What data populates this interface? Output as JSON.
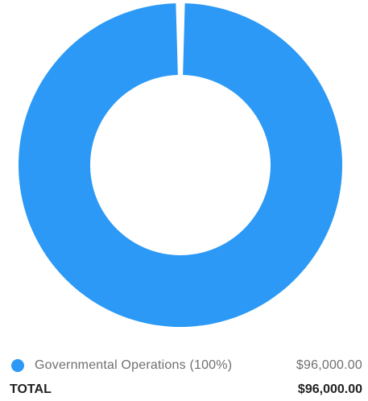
{
  "chart_data": {
    "type": "pie",
    "style": "donut",
    "categories": [
      "Governmental Operations"
    ],
    "values": [
      96000
    ],
    "colors": [
      "#2b99f5"
    ],
    "legend": [
      {
        "label": "Governmental Operations (100%)",
        "value": "$96,000.00"
      }
    ],
    "legend_placement": "bottom"
  },
  "total": {
    "label": "TOTAL",
    "value": "$96,000.00"
  }
}
